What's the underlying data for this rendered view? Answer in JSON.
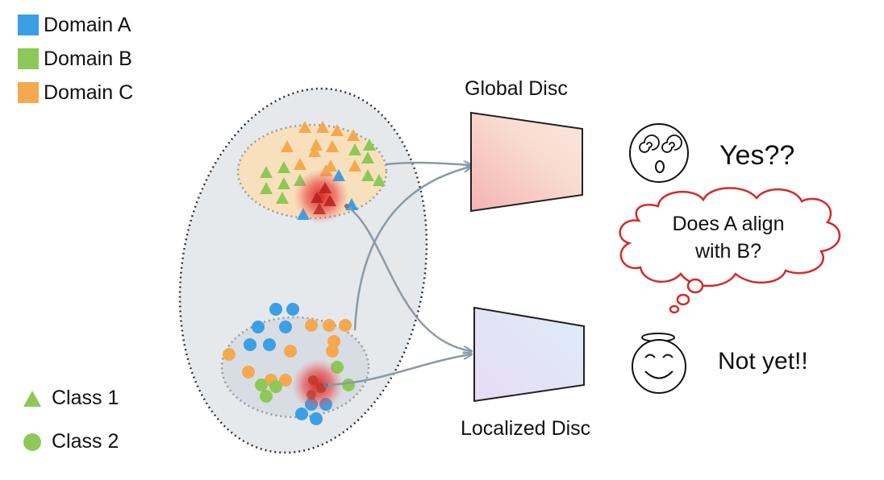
{
  "legend": {
    "domains": [
      {
        "label": "Domain A",
        "color": "#3b9fe6"
      },
      {
        "label": "Domain B",
        "color": "#8dc859"
      },
      {
        "label": "Domain C",
        "color": "#f5a94f"
      }
    ],
    "classes": [
      {
        "label": "Class 1",
        "shape": "triangle",
        "color": "#8dc859"
      },
      {
        "label": "Class 2",
        "shape": "circle",
        "color": "#8dc859"
      }
    ]
  },
  "discriminators": {
    "global": {
      "label": "Global Disc"
    },
    "localized": {
      "label": "Localized Disc"
    }
  },
  "responses": {
    "global_answer": "Yes??",
    "localized_answer": "Not yet!!",
    "global_face_icon": "dizzy-face-icon",
    "localized_face_icon": "angel-smile-face-icon"
  },
  "thought": {
    "line1": "Does A align",
    "line2": "with B?"
  },
  "colors": {
    "domain_a": "#3b9fe6",
    "domain_b": "#8dc859",
    "domain_c": "#f5a94f",
    "highlight": "#e02020",
    "thought_outline": "#d42a2a",
    "arrow": "#8a9aa6"
  }
}
